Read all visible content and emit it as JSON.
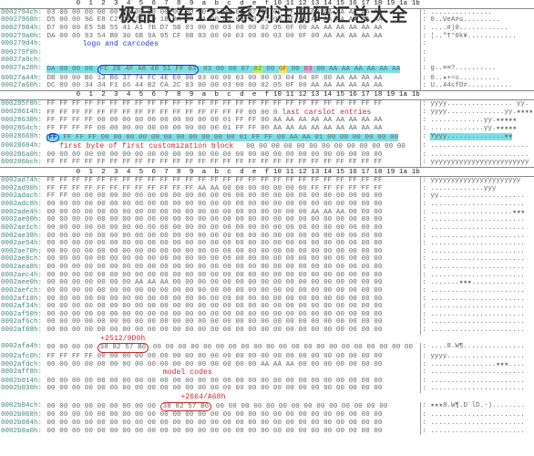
{
  "title": "极品飞车12全系列注册码汇总大全",
  "columns_header": "       0  1  2  3  4  5  6  7  8  9  a  b  c  d  e  f 10 11 12 13 14 15 16 17 18 19 1a 1b",
  "labels": {
    "logo": "logo and carcodes",
    "carslot": "last carslot entries",
    "custom": "first byte of first customization block",
    "offset1": "+2512/9D0h",
    "model": "model codes",
    "offset2": "+2664/A68h"
  },
  "section1": [
    {
      "off": "0002794ch:",
      "hex": "03 00 00 00 00 00 00 00 00 00 00 00 00 03 00 00 07 05 0F FF FF 00 AA AA AA AA AA",
      "asc": "..............."
    },
    {
      "off": "00027968h:",
      "hex": "D5 00 00 96 E8 C2 24 73 1D 1B 8A 03 0A 00 03 00 00 02 00 0F 00 AA AA AA AA AA AA",
      "asc": "0..VeA≠≤........."
    },
    {
      "off": "00027984h:",
      "hex": "D7 00 00 E5 5B 55 41 A1 7B D7 5B 03 00 00 03 00 00 02 05 0F 00 AA AA AA AA AA AA",
      "asc": "....#)0............"
    },
    {
      "off": "000279a0h:",
      "hex": "DA 00 00 93 54 B0 30 6B 9A 95 CF 0B 03 00 00 03 00 00 03 00 0F 00 AA AA AA AA AA",
      "asc": "¦..\"T°0k¥............"
    },
    {
      "off": "000279d4h:",
      "hex": "",
      "asc": ""
    },
    {
      "off": "000279f0h:",
      "hex": "",
      "asc": ""
    },
    {
      "off": "00027a0ch:",
      "hex": "",
      "asc": ""
    }
  ],
  "row_cyan1": {
    "off": "00027a28h:",
    "before": "DA 00 00 00 ",
    "box": "FC 28 4F A8 40 51 FF 03",
    "mid": " 03 00 00 07 ",
    "lime": "02",
    "sp": " 00 ",
    "yel": "0F",
    "sp2": " 00 ",
    "pink": "03",
    "after": " 00 AA AA AA AA AA AA",
    "asc": "g..≡≡?.........."
  },
  "section1b": [
    {
      "off": "00027a44h:",
      "hex": "DB 00 00 B6 13 B6 37 74 FC 4E E0 0B 03 00 00 03 00 00 03 04 04 0F 00 AA AA AA AA",
      "asc": "0..★+≈≤.........."
    },
    {
      "off": "00027a60h:",
      "hex": "DC 00 00 34 34 F1 66 44 B2 CA 2C 03 00 00 03 00 00 02 05 0F 00 AA AA AA AA AA AA",
      "asc": "U..44≤fD≠..........."
    }
  ],
  "section2": [
    {
      "off": "000285f8h:",
      "hex": "FF FF FF FF FF FF FF FF FF FF FF FF FF FF FF FF FF FF FF FF FF FF FF FF FF FF FF",
      "asc": "yyyy................ yy."
    },
    {
      "off": "00028614h:",
      "hex": "FF FF FF FF FF FF FF FF FF FF FF FF FF FF FF FF 00 00 01 FF FF 00 AA AA AA AA AA",
      "asc": "yyyy..............yy.★★★★"
    },
    {
      "off": "00028630h:",
      "hex": "FF FF FF FF 00 00 00 00 00 00 00 00 00 00 01 FF FF 00 AA AA AA AA AA AA AA AA AA",
      "asc": ".............yy.★★★★★"
    },
    {
      "off": "0002864ch:",
      "hex": "FF FF FF FF 00 00 00 00 00 00 00 00 00 00 01 FF FF 00 AA AA AA AA AA AA AA AA AA",
      "asc": ".............yy.★★★★★"
    }
  ],
  "row_cyan2": {
    "off": "00028668h:",
    "ring": "FF",
    "hex": " FF FF FF 00 00 00 00 00 00 00 00 00 00 00 01 FF FF 00 AA AA 01 00 00 00 00 00 00",
    "partpink": true,
    "asc": "Yyyy..............★★"
  },
  "section2b": [
    {
      "off": "00028684h:",
      "hex": "00 00 00 00 00 00 00 00 00 00 00 00 00 00 00 00 00 00 00 00 00 00 00 00 00 00 00",
      "asc": "........................"
    },
    {
      "off": "000286a0h:",
      "hex": "00 00 00 00 00 00 00 00 00 00 00 00 00 00 00 00 00 00 00 00 00 00 00 00 00 00 00",
      "asc": "........................"
    },
    {
      "off": "000286bch:",
      "hex": "FF FF FF FF FF FF FF FF FF FF FF FF FF FF FF FF FF FF FF FF FF FF FF FF FF FF FF",
      "asc": "yyyyyyyyyyyyyyyyyyyyyyyy"
    }
  ],
  "section3_header_off": "0002ad74h:",
  "section3": [
    {
      "off": "0002ad74h:",
      "hex": "FF FF FF FF FF FF FF FF FF FF FF FF FF FF FF FF FF FF FF FF FF FF FF FF FF FF FF",
      "asc": "yyyyyyyyyyyyyyyyyyyyyy"
    },
    {
      "off": "0002ad90h:",
      "hex": "FF FF FF FF FF FF FF FF FF FF FF FF AA AA 00 00 00 00 00 00 00 FF FF FF FF FF FF",
      "asc": ".............yyy"
    },
    {
      "off": "0002adach:",
      "hex": "FF FF 00 00 00 00 00 00 00 00 00 00 00 00 00 00 00 00 00 00 00 00 00 00 00 00 00",
      "asc": "yy....................."
    },
    {
      "off": "0002adc8h:",
      "hex": "00 00 00 00 00 00 00 00 00 00 00 00 00 00 00 00 00 00 00 00 00 00 00 00 00 00 00",
      "asc": "......................."
    },
    {
      "off": "0002ade4h:",
      "hex": "00 00 00 00 00 00 00 00 00 00 00 00 00 00 00 00 00 00 00 00 00 AA AA AA 00 00 00",
      "asc": "....................★★★"
    },
    {
      "off": "0002ae00h:",
      "hex": "00 00 00 00 00 00 00 00 00 00 00 00 00 00 00 00 00 00 00 00 00 00 00 00 00 00 00",
      "asc": "......................."
    },
    {
      "off": "0002ae1ch:",
      "hex": "00 00 00 00 00 00 00 00 00 00 00 00 00 00 00 00 00 00 00 00 00 00 00 00 00 00 00",
      "asc": "......................."
    },
    {
      "off": "0002ae38h:",
      "hex": "00 00 00 00 00 00 00 00 00 00 00 00 00 00 00 00 00 00 00 00 00 00 00 00 00 00 00",
      "asc": "......................."
    },
    {
      "off": "0002ae54h:",
      "hex": "00 00 00 00 00 00 00 00 00 00 00 00 00 00 00 00 00 00 00 00 00 00 00 00 00 00 00",
      "asc": "......................."
    },
    {
      "off": "0002ae70h:",
      "hex": "00 00 00 00 00 00 00 00 00 00 00 00 00 00 00 00 00 00 00 00 00 00 00 00 00 00 00",
      "asc": "......................."
    },
    {
      "off": "0002ae8ch:",
      "hex": "00 00 00 00 00 00 00 00 00 00 00 00 00 00 00 00 00 00 00 00 00 00 00 00 00 00 00",
      "asc": "......................."
    },
    {
      "off": "0002aea8h:",
      "hex": "00 00 00 00 00 00 00 00 00 00 00 00 00 00 00 00 00 00 00 00 00 00 00 00 00 00 00",
      "asc": "......................."
    },
    {
      "off": "0002aec4h:",
      "hex": "00 00 00 00 00 00 00 00 00 00 00 00 00 00 00 00 00 00 00 00 00 00 00 00 00 00 00",
      "asc": "......................."
    },
    {
      "off": "0002aee0h:",
      "hex": "00 00 00 00 00 00 00 AA AA AA 00 00 00 00 00 00 00 00 00 00 00 00 00 00 00 00 00",
      "asc": ".......★★★............."
    },
    {
      "off": "0002aefch:",
      "hex": "00 00 00 00 00 00 00 00 00 00 00 00 00 00 00 00 00 00 00 00 00 00 00 00 00 00 00",
      "asc": "......................."
    },
    {
      "off": "0002af18h:",
      "hex": "00 00 00 00 00 00 00 00 00 00 00 00 00 00 00 00 00 00 00 00 00 00 00 00 00 00 00",
      "asc": "......................."
    },
    {
      "off": "0002af34h:",
      "hex": "00 00 00 00 00 00 00 00 00 00 00 00 00 00 00 00 00 00 00 00 00 00 00 00 00 00 00",
      "asc": "......................."
    },
    {
      "off": "0002af50h:",
      "hex": "00 00 00 00 00 00 00 00 00 00 00 00 00 00 00 00 00 00 00 00 00 00 00 00 00 00 00",
      "asc": "......................."
    },
    {
      "off": "0002af6ch:",
      "hex": "00 00 00 00 00 00 00 00 00 00 00 00 00 00 00 00 00 00 00 00 00 00 00 00 00 00 00",
      "asc": "......................."
    },
    {
      "off": "0002af88h:",
      "hex": "00 00 00 00 00 00 00 00 00 00 00 00 00 00 00 00 00 00 00 00 00 00 00 00 00 00 00",
      "asc": "......................."
    }
  ],
  "row_box1": {
    "off": "0002afa4h:",
    "pre": "00 00 00 00 ",
    "box": "38 82 57 B6",
    "post": " 00 00 00 00 00 00 00 00 00 00 00 00 00 00 00 00 00 00 00 00 00",
    "asc": "....8.W¶..............."
  },
  "section3b": [
    {
      "off": "0002afc0h:",
      "hex": "FF FF FF FF 00 00 00 00 00 00 00 00 00 00 00 00 00 00 00 00 00 00 00 00 00 00 00",
      "asc": "yyyy..................."
    },
    {
      "off": "0002afdch:",
      "hex": "00 00 00 00 00 00 00 00 00 00 00 00 00 00 00 00 00 AA AA AA 00 00 00 00 00 00 00",
      "asc": "................★★★...."
    },
    {
      "off": "0002aff8h:",
      "hex": "00 00 00 00 00 00 00 00 00 00 00 00 00 00 00 00 00 00 00 00 00 00 00 00 00 00 00",
      "asc": "......................."
    },
    {
      "off": "0002b014h:",
      "hex": "00 00 00 00 00 00 00 00 00 00 00 00 00 00 00 00 00 00 00 00 00 00 00 00 00 00 00",
      "asc": "......................."
    },
    {
      "off": "0002b030h:",
      "hex": "00 00 00 00 00 00 00 00 00 00 00 00 00 00 00 00 00 00 00 00 00 00 00 00 00 00 00",
      "asc": "......................."
    }
  ],
  "row_box2": {
    "off": "0002b04ch:",
    "pre": "00 00 00 00 00 00 00 00 00 ",
    "box": "38 82 57 B6",
    "post": " 00 00 00 00 00 00 00 00 00 00 00 00 00 00",
    "asc": "★★★8.W¶.D¨lD.-)........"
  },
  "section3c": [
    {
      "off": "0002b068h:",
      "hex": "00 00 00 00 00 00 00 00 00 00 00 00 00 00 00 00 00 00 00 00 00 00 00 00 00 00 00",
      "asc": ".......................  "
    },
    {
      "off": "0002b084h:",
      "hex": "00 00 00 00 00 00 00 00 00 00 00 00 00 00 00 00 00 00 00 00 00 00 00 00 00 00 00",
      "asc": "......................."
    },
    {
      "off": "0002b0a0h:",
      "hex": "00 00 00 00 00 00 00 00 00 00 00 00 00 00 00 00 00 00 00 00 00 00 00 00 00 00 00",
      "asc": "......................."
    }
  ],
  "colors": {
    "cyan": "#7be0e6",
    "lime": "#b5f25a",
    "yellow": "#f5e05a",
    "pink": "#f5a0d0",
    "blue": "#2233dd",
    "red": "#dd2222"
  }
}
